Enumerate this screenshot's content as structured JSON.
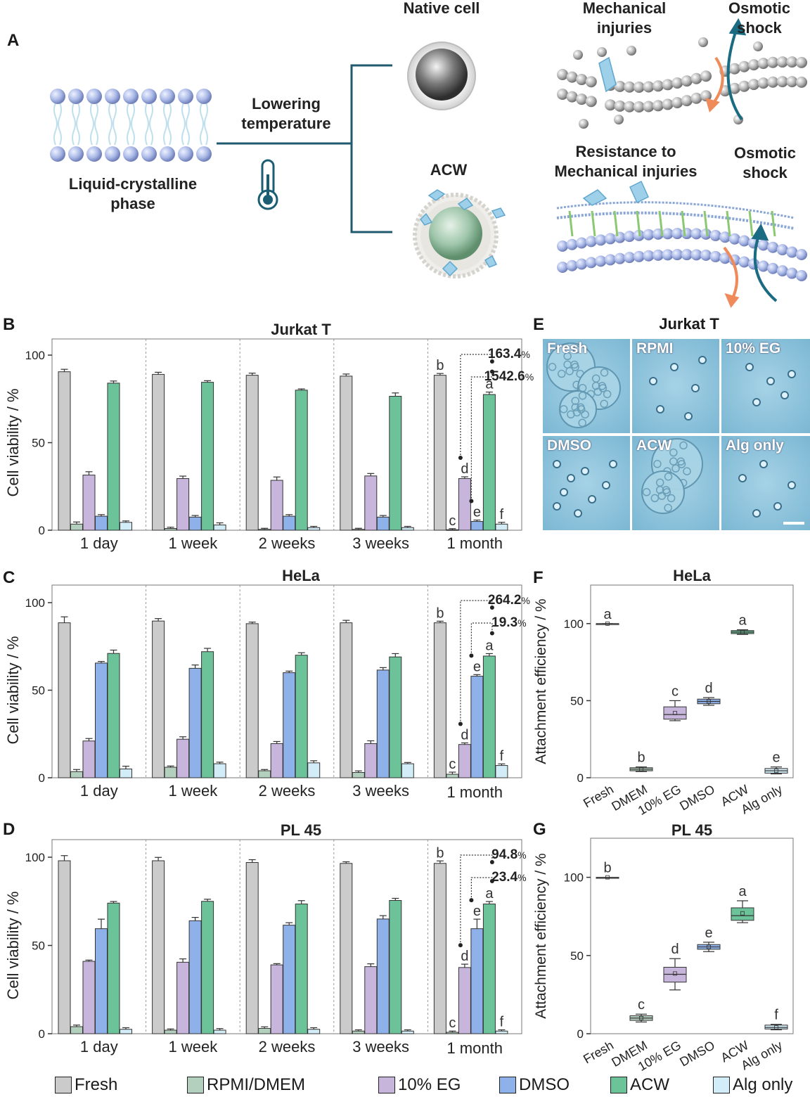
{
  "panel_letters": {
    "a": "A",
    "b": "B",
    "c": "C",
    "d": "D",
    "e": "E",
    "f": "F",
    "g": "G"
  },
  "schematic": {
    "membrane_label": "Liquid-crystalline\nphase",
    "arrow_label": "Lowering\ntemperature",
    "native_cell": "Native cell",
    "acw": "ACW",
    "mech_injuries": "Mechanical\ninjuries",
    "osmotic1": "Osmotic\nshock",
    "resistance": "Resistance to\nMechanical injuries",
    "osmotic2": "Osmotic\nshock",
    "colors": {
      "line": "#1f5a6e",
      "head": "#a9b8e6",
      "orange": "#ef8a5a",
      "teal": "#1b6b82",
      "ice": "#9ed0ea"
    }
  },
  "micrograph": {
    "title": "Jurkat T",
    "labels": [
      "Fresh",
      "RPMI",
      "10% EG",
      "DMSO",
      "ACW",
      "Alg only"
    ]
  },
  "legend": {
    "items": [
      {
        "label": "Fresh",
        "color": "#cbcbcb"
      },
      {
        "label": "RPMI/DMEM",
        "color": "#b3cfbd"
      },
      {
        "label": "10% EG",
        "color": "#c8b5dc"
      },
      {
        "label": "DMSO",
        "color": "#8fb1ea"
      },
      {
        "label": "ACW",
        "color": "#6cc39a"
      },
      {
        "label": "Alg only",
        "color": "#d2ecf8"
      }
    ]
  },
  "chart_data": [
    {
      "id": "B",
      "type": "bar",
      "title": "Jurkat T",
      "ylabel": "Cell viability / %",
      "ylim": [
        0,
        100
      ],
      "yticks": [
        0,
        50,
        100
      ],
      "categories": [
        "1 day",
        "1 week",
        "2 weeks",
        "3 weeks",
        "1 month"
      ],
      "series": [
        {
          "name": "Fresh",
          "values": [
            90.5,
            89,
            88.5,
            88,
            88.5
          ],
          "err": [
            1,
            0.8,
            0.8,
            0.8,
            0.6
          ]
        },
        {
          "name": "RPMI/DMEM",
          "values": [
            3.5,
            1,
            0.5,
            0.5,
            0.3
          ],
          "err": [
            0.8,
            0.3,
            0.2,
            0.2,
            0.2
          ]
        },
        {
          "name": "10% EG",
          "values": [
            31.5,
            29.5,
            28.5,
            31,
            29.5
          ],
          "err": [
            1.5,
            1,
            1.5,
            1,
            0.6
          ]
        },
        {
          "name": "DMSO",
          "values": [
            8,
            7.5,
            8,
            7.5,
            5
          ],
          "err": [
            0.5,
            0.5,
            0.5,
            0.5,
            0.4
          ]
        },
        {
          "name": "ACW",
          "values": [
            84,
            84.5,
            80,
            76.5,
            77.5
          ],
          "err": [
            0.8,
            0.5,
            0.3,
            1.5,
            1
          ]
        },
        {
          "name": "Alg only",
          "values": [
            4.5,
            3,
            1.5,
            1.5,
            3.5
          ],
          "err": [
            0.4,
            0.8,
            0.3,
            0.3,
            0.6
          ]
        }
      ],
      "sig_letters": [
        "b",
        "c",
        "d",
        "e",
        "a",
        "f"
      ],
      "brackets": [
        "163.4",
        "1542.6"
      ],
      "bracket_unit": "%"
    },
    {
      "id": "C",
      "type": "bar",
      "title": "HeLa",
      "ylabel": "Cell viability / %",
      "ylim": [
        0,
        100
      ],
      "yticks": [
        0,
        50,
        100
      ],
      "categories": [
        "1 day",
        "1 week",
        "2 weeks",
        "3 weeks",
        "1 month"
      ],
      "series": [
        {
          "name": "Fresh",
          "values": [
            88.5,
            89.5,
            88,
            88.5,
            88.5
          ],
          "err": [
            3,
            1,
            0.5,
            1,
            0.5
          ]
        },
        {
          "name": "RPMI/DMEM",
          "values": [
            3.5,
            6,
            4,
            3,
            2
          ],
          "err": [
            0.8,
            0.3,
            0.3,
            0.5,
            0.8
          ]
        },
        {
          "name": "10% EG",
          "values": [
            21,
            22,
            19.5,
            19.5,
            19
          ],
          "err": [
            1,
            1,
            0.8,
            1.2,
            0.5
          ]
        },
        {
          "name": "DMSO",
          "values": [
            65.5,
            62.5,
            60,
            61.5,
            58
          ],
          "err": [
            0.5,
            1.5,
            0.5,
            1,
            0.5
          ]
        },
        {
          "name": "ACW",
          "values": [
            71,
            72,
            70,
            69,
            69.5
          ],
          "err": [
            1.5,
            1.5,
            1,
            1.5,
            1
          ]
        },
        {
          "name": "Alg only",
          "values": [
            5,
            8,
            8.5,
            8,
            7
          ],
          "err": [
            1.2,
            0.5,
            0.8,
            0.3,
            0.5
          ]
        }
      ],
      "sig_letters": [
        "b",
        "c",
        "d",
        "e",
        "a",
        "f"
      ],
      "brackets": [
        "264.2",
        "19.3"
      ],
      "bracket_unit": "%"
    },
    {
      "id": "D",
      "type": "bar",
      "title": "PL 45",
      "ylabel": "Cell viability / %",
      "ylim": [
        0,
        100
      ],
      "yticks": [
        0,
        50,
        100
      ],
      "categories": [
        "1 day",
        "1 week",
        "2 weeks",
        "3 weeks",
        "1 month"
      ],
      "series": [
        {
          "name": "Fresh",
          "values": [
            98,
            98,
            97,
            96.5,
            96.5
          ],
          "err": [
            2.5,
            1.5,
            1.2,
            0.5,
            1
          ]
        },
        {
          "name": "RPMI/DMEM",
          "values": [
            4,
            2,
            3,
            1.5,
            0.8
          ],
          "err": [
            0.5,
            0.3,
            0.5,
            0.3,
            0.3
          ]
        },
        {
          "name": "10% EG",
          "values": [
            41,
            40.5,
            39,
            38,
            37.5
          ],
          "err": [
            0.3,
            1.5,
            0.3,
            1.2,
            1.5
          ]
        },
        {
          "name": "DMSO",
          "values": [
            59.5,
            64,
            61.5,
            65,
            59.5
          ],
          "err": [
            5,
            1.5,
            1,
            1.5,
            5
          ]
        },
        {
          "name": "ACW",
          "values": [
            74,
            75,
            73.5,
            75.5,
            73.5
          ],
          "err": [
            0.5,
            0.8,
            1.5,
            0.8,
            1
          ]
        },
        {
          "name": "Alg only",
          "values": [
            2.5,
            2,
            2.5,
            1.5,
            1.5
          ],
          "err": [
            0.5,
            0.5,
            0.5,
            0.3,
            0.3
          ]
        }
      ],
      "sig_letters": [
        "b",
        "c",
        "d",
        "e",
        "a",
        "f"
      ],
      "brackets": [
        "94.8",
        "23.4"
      ],
      "bracket_unit": "%"
    },
    {
      "id": "F",
      "type": "box",
      "title": "HeLa",
      "ylabel": "Attachment efficiency / %",
      "ylim": [
        0,
        125
      ],
      "yticks": [
        0,
        50,
        100
      ],
      "categories": [
        "Fresh",
        "DMEM",
        "10% EG",
        "DMSO",
        "ACW",
        "Alg only"
      ],
      "boxes": [
        {
          "min": 100,
          "q1": 100,
          "median": 100,
          "q3": 100,
          "max": 100,
          "mean": 100
        },
        {
          "min": 4,
          "q1": 4.5,
          "median": 5.5,
          "q3": 6.5,
          "max": 7,
          "mean": 5.5
        },
        {
          "min": 37,
          "q1": 38,
          "median": 41,
          "q3": 46,
          "max": 50,
          "mean": 42
        },
        {
          "min": 47,
          "q1": 48,
          "median": 49.5,
          "q3": 51,
          "max": 52,
          "mean": 49.5
        },
        {
          "min": 93,
          "q1": 93.5,
          "median": 94.5,
          "q3": 95.5,
          "max": 96,
          "mean": 94.5
        },
        {
          "min": 2.5,
          "q1": 3,
          "median": 4.5,
          "q3": 6,
          "max": 7,
          "mean": 4.5
        }
      ],
      "sig_letters": [
        "a",
        "b",
        "c",
        "d",
        "a",
        "e"
      ]
    },
    {
      "id": "G",
      "type": "box",
      "title": "PL 45",
      "ylabel": "Attachment efficiency / %",
      "ylim": [
        0,
        125
      ],
      "yticks": [
        0,
        50,
        100
      ],
      "categories": [
        "Fresh",
        "DMEM",
        "10% EG",
        "DMSO",
        "ACW",
        "Alg only"
      ],
      "boxes": [
        {
          "min": 100,
          "q1": 100,
          "median": 100,
          "q3": 100,
          "max": 100,
          "mean": 100
        },
        {
          "min": 7.5,
          "q1": 8.5,
          "median": 10,
          "q3": 11.5,
          "max": 12.5,
          "mean": 10
        },
        {
          "min": 28,
          "q1": 33,
          "median": 38,
          "q3": 42.5,
          "max": 48,
          "mean": 38.5
        },
        {
          "min": 52.5,
          "q1": 54,
          "median": 55.5,
          "q3": 57,
          "max": 58.5,
          "mean": 55.5
        },
        {
          "min": 71,
          "q1": 72.5,
          "median": 75.5,
          "q3": 80.5,
          "max": 85,
          "mean": 77
        },
        {
          "min": 2.5,
          "q1": 3,
          "median": 4,
          "q3": 5.5,
          "max": 6,
          "mean": 4
        }
      ],
      "sig_letters": [
        "b",
        "c",
        "d",
        "e",
        "a",
        "f"
      ]
    }
  ]
}
